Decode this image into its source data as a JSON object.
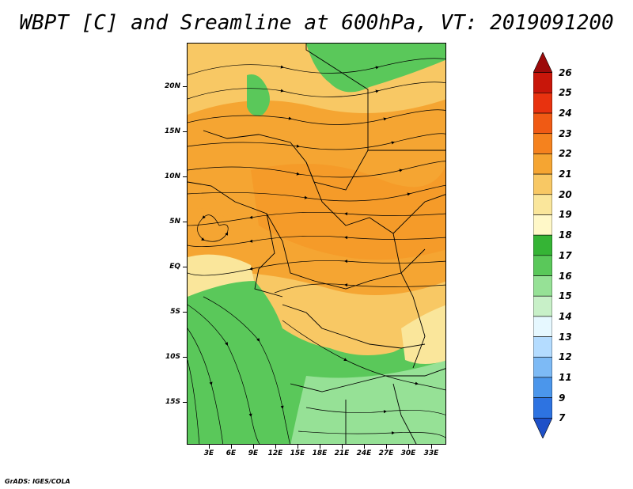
{
  "title": "WBPT [C] and Sreamline at 600hPa, VT: 2019091200",
  "credit": "GrADS: IGES/COLA",
  "map": {
    "lon_labels": [
      "3E",
      "6E",
      "9E",
      "12E",
      "15E",
      "18E",
      "21E",
      "24E",
      "27E",
      "30E",
      "33E"
    ],
    "lat_labels": [
      "20N",
      "15N",
      "10N",
      "5N",
      "EQ",
      "5S",
      "10S",
      "15S"
    ],
    "lon_range": [
      0,
      35
    ],
    "lat_range": [
      -20,
      24.5
    ]
  },
  "colorbar": {
    "labels": [
      "26",
      "25",
      "24",
      "23",
      "22",
      "21",
      "20",
      "19",
      "18",
      "17",
      "16",
      "15",
      "14",
      "13",
      "12",
      "11",
      "9",
      "7"
    ],
    "colors": [
      "#9c0a0a",
      "#c8160a",
      "#e8320f",
      "#f05a14",
      "#f5821e",
      "#f5a532",
      "#f8c864",
      "#fae69b",
      "#fff8c8",
      "#35b435",
      "#5ac85a",
      "#96e196",
      "#c8f0c8",
      "#e6f8ff",
      "#b4dcff",
      "#7dbaf5",
      "#4b96eb",
      "#2d73e1",
      "#1e50c8"
    ]
  }
}
